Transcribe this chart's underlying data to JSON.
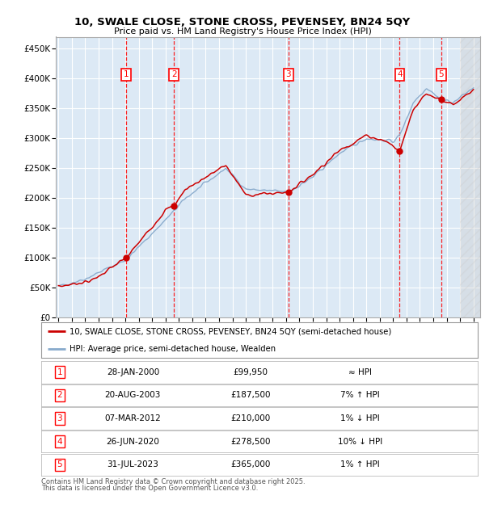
{
  "title": "10, SWALE CLOSE, STONE CROSS, PEVENSEY, BN24 5QY",
  "subtitle": "Price paid vs. HM Land Registry's House Price Index (HPI)",
  "bg_color": "#dce9f5",
  "plot_bg": "#dce9f5",
  "grid_color": "#ffffff",
  "sale_color": "#cc0000",
  "hpi_color": "#88aacc",
  "ylim": [
    0,
    470000
  ],
  "xlim_start": 1994.8,
  "xlim_end": 2026.5,
  "yticks": [
    0,
    50000,
    100000,
    150000,
    200000,
    250000,
    300000,
    350000,
    400000,
    450000
  ],
  "xtick_years": [
    1995,
    1996,
    1997,
    1998,
    1999,
    2000,
    2001,
    2002,
    2003,
    2004,
    2005,
    2006,
    2007,
    2008,
    2009,
    2010,
    2011,
    2012,
    2013,
    2014,
    2015,
    2016,
    2017,
    2018,
    2019,
    2020,
    2021,
    2022,
    2023,
    2024,
    2025,
    2026
  ],
  "sales": [
    {
      "n": 1,
      "year": 2000.07,
      "price": 99950,
      "label": "28-JAN-2000",
      "amount": "£99,950",
      "note": "≈ HPI"
    },
    {
      "n": 2,
      "year": 2003.63,
      "price": 187500,
      "label": "20-AUG-2003",
      "amount": "£187,500",
      "note": "7% ↑ HPI"
    },
    {
      "n": 3,
      "year": 2012.18,
      "price": 210000,
      "label": "07-MAR-2012",
      "amount": "£210,000",
      "note": "1% ↓ HPI"
    },
    {
      "n": 4,
      "year": 2020.49,
      "price": 278500,
      "label": "26-JUN-2020",
      "amount": "£278,500",
      "note": "10% ↓ HPI"
    },
    {
      "n": 5,
      "year": 2023.58,
      "price": 365000,
      "label": "31-JUL-2023",
      "amount": "£365,000",
      "note": "1% ↑ HPI"
    }
  ],
  "legend_line1": "10, SWALE CLOSE, STONE CROSS, PEVENSEY, BN24 5QY (semi-detached house)",
  "legend_line2": "HPI: Average price, semi-detached house, Wealden",
  "footer1": "Contains HM Land Registry data © Crown copyright and database right 2025.",
  "footer2": "This data is licensed under the Open Government Licence v3.0.",
  "hpi_anchors_x": [
    1995.0,
    1997.0,
    2000.07,
    2003.5,
    2004.5,
    2007.5,
    2009.0,
    2012.18,
    2014.0,
    2016.0,
    2018.0,
    2020.0,
    2020.49,
    2021.5,
    2022.5,
    2023.58,
    2024.5,
    2026.0
  ],
  "hpi_anchors_y": [
    52000,
    65000,
    97000,
    175000,
    200000,
    250000,
    215000,
    210000,
    235000,
    275000,
    300000,
    295000,
    305000,
    360000,
    385000,
    365000,
    360000,
    385000
  ],
  "sale_anchors_x": [
    1995.0,
    1997.5,
    2000.07,
    2003.0,
    2003.63,
    2004.5,
    2007.5,
    2009.0,
    2012.18,
    2014.0,
    2016.0,
    2018.0,
    2019.5,
    2020.49,
    2021.5,
    2022.5,
    2023.58,
    2024.5,
    2026.0
  ],
  "sale_anchors_y": [
    52000,
    62000,
    99950,
    180000,
    187500,
    215000,
    255000,
    205000,
    210000,
    240000,
    280000,
    305000,
    295000,
    278500,
    350000,
    375000,
    365000,
    355000,
    380000
  ]
}
